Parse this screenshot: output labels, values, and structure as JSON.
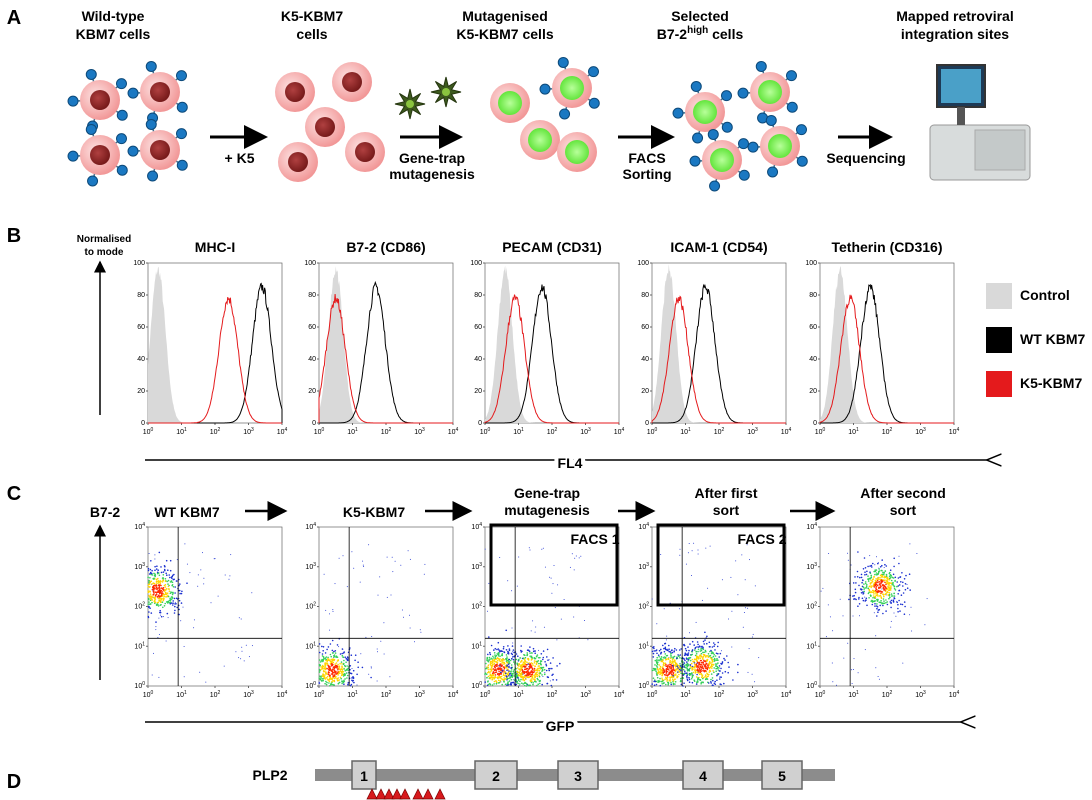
{
  "panel_a": {
    "label": "A",
    "steps": [
      {
        "line1": "Wild-type",
        "line2": "KBM7 cells"
      },
      {
        "line1": "K5-KBM7",
        "line2": "cells"
      },
      {
        "line1": "Mutagenised",
        "line2": "K5-KBM7 cells"
      },
      {
        "line1": "Selected",
        "line2": "B7-2",
        "sup": "high",
        "line2_end": " cells"
      },
      {
        "line1": "Mapped retroviral",
        "line2": "integration sites"
      }
    ],
    "arrows": [
      [
        "+ K5"
      ],
      [
        "Gene-trap",
        "mutagenesis"
      ],
      [
        "FACS",
        "Sorting"
      ],
      [
        "Sequencing"
      ]
    ]
  },
  "panel_b": {
    "label": "B",
    "y_label": [
      "Normalised",
      "to mode"
    ],
    "x_label": "FL4",
    "tick_base": "10",
    "xticks": [
      0,
      1,
      2,
      3,
      4
    ],
    "yticks": [
      0,
      20,
      40,
      60,
      80,
      100
    ],
    "legend": [
      {
        "name": "Control",
        "color": "#d9d9d9"
      },
      {
        "name": "WT KBM7",
        "color": "#000000"
      },
      {
        "name": "K5-KBM7",
        "color": "#e41a1c"
      }
    ],
    "plots": [
      {
        "title": "MHC-I",
        "peaks": [
          0.3,
          3.4,
          2.4
        ]
      },
      {
        "title": "B7-2 (CD86)",
        "peaks": [
          0.5,
          1.7,
          0.5
        ]
      },
      {
        "title": "PECAM (CD31)",
        "peaks": [
          0.6,
          1.7,
          0.9
        ]
      },
      {
        "title": "ICAM-1 (CD54)",
        "peaks": [
          0.5,
          1.6,
          0.8
        ]
      },
      {
        "title": "Tetherin (CD316)",
        "peaks": [
          0.6,
          1.5,
          0.9
        ]
      }
    ]
  },
  "panel_c": {
    "label": "C",
    "y_label": "B7-2",
    "x_label": "GFP",
    "tick_base": "10",
    "xticks": [
      0,
      1,
      2,
      3,
      4
    ],
    "yticks": [
      0,
      1,
      2,
      3,
      4
    ],
    "quadrant": [
      0.9,
      1.2
    ],
    "plots": [
      {
        "title": [
          "WT KBM7"
        ],
        "clusters": [
          [
            0.3,
            2.4
          ]
        ]
      },
      {
        "title": [
          "K5-KBM7"
        ],
        "clusters": [
          [
            0.4,
            0.4
          ]
        ]
      },
      {
        "title": [
          "Gene-trap",
          "mutagenesis"
        ],
        "gate": "FACS 1",
        "clusters": [
          [
            0.4,
            0.4
          ],
          [
            1.3,
            0.4
          ]
        ]
      },
      {
        "title": [
          "After first",
          "sort"
        ],
        "gate": "FACS 2",
        "clusters": [
          [
            0.5,
            0.4
          ],
          [
            1.5,
            0.5
          ]
        ]
      },
      {
        "title": [
          "After second",
          "sort"
        ],
        "clusters": [
          [
            1.8,
            2.5
          ]
        ]
      }
    ]
  },
  "panel_d": {
    "label": "D",
    "gene": "PLP2",
    "exons": [
      "1",
      "2",
      "3",
      "4",
      "5"
    ],
    "insertions": 8
  }
}
